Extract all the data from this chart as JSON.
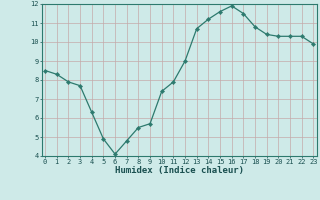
{
  "x": [
    0,
    1,
    2,
    3,
    4,
    5,
    6,
    7,
    8,
    9,
    10,
    11,
    12,
    13,
    14,
    15,
    16,
    17,
    18,
    19,
    20,
    21,
    22,
    23
  ],
  "y": [
    8.5,
    8.3,
    7.9,
    7.7,
    6.3,
    4.9,
    4.1,
    4.8,
    5.5,
    5.7,
    7.4,
    7.9,
    9.0,
    10.7,
    11.2,
    11.6,
    11.9,
    11.5,
    10.8,
    10.4,
    10.3,
    10.3,
    10.3,
    9.9
  ],
  "xlabel": "Humidex (Indice chaleur)",
  "ylim": [
    4,
    12
  ],
  "yticks": [
    4,
    5,
    6,
    7,
    8,
    9,
    10,
    11,
    12
  ],
  "xticks": [
    0,
    1,
    2,
    3,
    4,
    5,
    6,
    7,
    8,
    9,
    10,
    11,
    12,
    13,
    14,
    15,
    16,
    17,
    18,
    19,
    20,
    21,
    22,
    23
  ],
  "line_color": "#2d7a6e",
  "marker": "D",
  "marker_size": 2.2,
  "bg_color": "#ceeae8",
  "grid_color": "#c4aaaa",
  "axis_color": "#2d7a6e",
  "label_color": "#1a5050",
  "tick_fontsize": 5.0,
  "xlabel_fontsize": 6.5
}
